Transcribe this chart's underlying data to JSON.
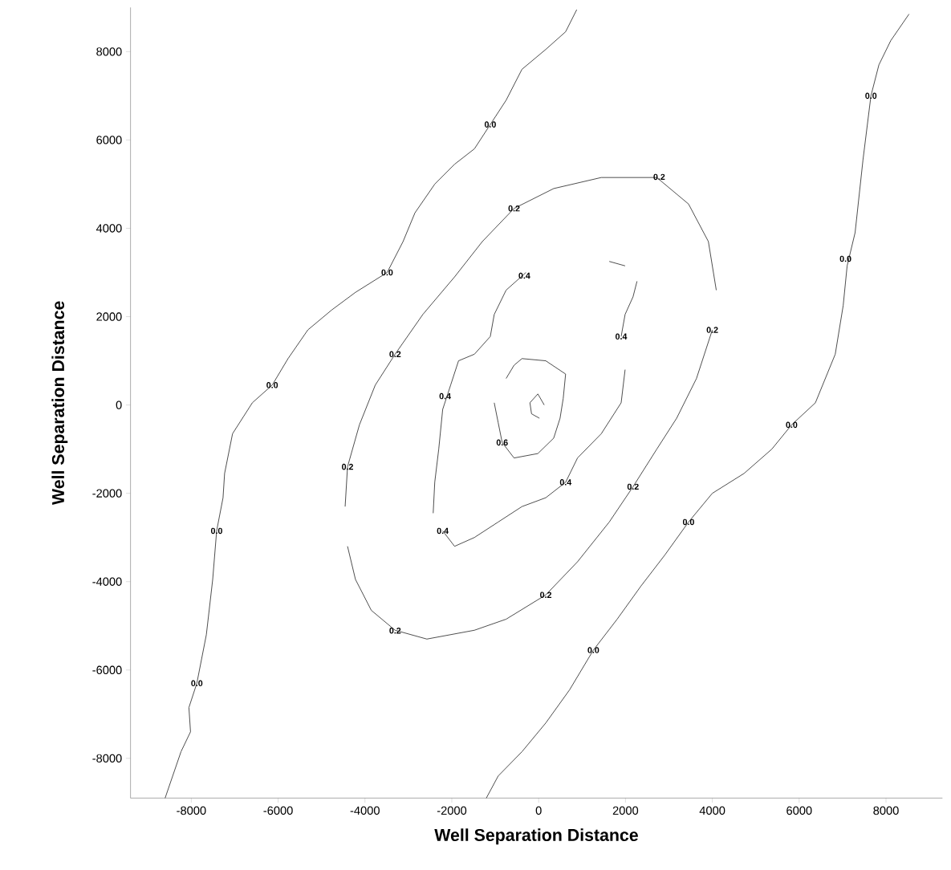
{
  "chart_data": {
    "type": "line",
    "xlabel": "Well Separation Distance",
    "ylabel": "Well Separation Distance",
    "xlim": [
      -9400,
      9300
    ],
    "ylim": [
      -8900,
      9000
    ],
    "xticks": [
      -8000,
      -6000,
      -4000,
      -2000,
      0,
      2000,
      4000,
      6000,
      8000
    ],
    "yticks": [
      -8000,
      -6000,
      -4000,
      -2000,
      0,
      2000,
      4000,
      6000,
      8000
    ],
    "marker": "none",
    "line_style": "solid",
    "series": [
      {
        "color": "#222222",
        "x": [
          877,
          621,
          164,
          -384,
          -749,
          -1114,
          -1479,
          -1936,
          -2393,
          -2849,
          -3123,
          -3489,
          -4219,
          -4767,
          -5315,
          -5772,
          -6137,
          -6594,
          -7050,
          -7233,
          -7269,
          -7416,
          -7507,
          -7653,
          -7872,
          -8055,
          -8018,
          -8237,
          -8603
        ],
        "values": [
          8950,
          8450,
          8050,
          7600,
          6900,
          6350,
          5800,
          5450,
          5000,
          4350,
          3700,
          3000,
          2550,
          2150,
          1700,
          1050,
          450,
          50,
          -650,
          -1550,
          -2100,
          -2850,
          -3950,
          -5200,
          -6300,
          -6850,
          -7400,
          -7850,
          -8900
        ]
      },
      {
        "color": "#222222",
        "x": [
          -1205,
          -932,
          -384,
          164,
          712,
          1260,
          1808,
          2356,
          2904,
          3452,
          4000,
          4731,
          5370,
          5826,
          6374,
          6831,
          7014,
          7105,
          7288,
          7470,
          7653,
          7836,
          8110,
          8530
        ],
        "values": [
          -8900,
          -8400,
          -7850,
          -7200,
          -6450,
          -5550,
          -4850,
          -4100,
          -3400,
          -2650,
          -2000,
          -1550,
          -1000,
          -450,
          50,
          1150,
          2250,
          3150,
          3900,
          5550,
          7000,
          7700,
          8250,
          8850
        ]
      },
      {
        "color": "#222222",
        "x": [
          -4457,
          -4402,
          -4128,
          -3763,
          -3306,
          -2667,
          -1936,
          -1297,
          -566,
          347,
          1443,
          2721,
          3452,
          3909,
          4091
        ],
        "values": [
          -2300,
          -1400,
          -450,
          450,
          1150,
          2050,
          2900,
          3700,
          4450,
          4900,
          5150,
          5150,
          4550,
          3700,
          2600
        ]
      },
      {
        "color": "#222222",
        "x": [
          4000,
          3635,
          3178,
          2721,
          2174,
          1626,
          895,
          164,
          -749,
          -1479,
          -2575,
          -3306,
          -3854,
          -4219,
          -4402
        ],
        "values": [
          1700,
          600,
          -300,
          -1000,
          -1850,
          -2650,
          -3550,
          -4300,
          -4850,
          -5100,
          -5300,
          -5100,
          -4650,
          -3950,
          -3200
        ]
      },
      {
        "color": "#222222",
        "x": [
          -2429,
          -2393,
          -2301,
          -2210,
          -2027,
          -1845,
          -1479,
          -1114,
          -1023,
          -749,
          -292
        ],
        "values": [
          -2450,
          -1750,
          -1000,
          -100,
          450,
          1000,
          1150,
          1550,
          2050,
          2600,
          3000
        ]
      },
      {
        "color": "#222222",
        "x": [
          -2210,
          -1936,
          -1479,
          -932,
          -384,
          164,
          621,
          895,
          1443,
          1900,
          1991
        ],
        "values": [
          -2850,
          -3200,
          -3000,
          -2650,
          -2300,
          -2100,
          -1750,
          -1200,
          -650,
          50,
          800
        ]
      },
      {
        "color": "#222222",
        "x": [
          1900,
          1991,
          2174,
          2265
        ],
        "values": [
          1550,
          2050,
          2450,
          2800
        ]
      },
      {
        "color": "#222222",
        "x": [
          1626,
          1991
        ],
        "values": [
          3250,
          3150
        ]
      },
      {
        "color": "#222222",
        "x": [
          -749,
          -566,
          -384,
          164,
          621
        ],
        "values": [
          600,
          900,
          1050,
          1000,
          700
        ]
      },
      {
        "color": "#222222",
        "x": [
          621,
          566,
          493,
          347,
          -18,
          -566,
          -840,
          -932,
          -1023
        ],
        "values": [
          700,
          150,
          -300,
          -750,
          -1100,
          -1200,
          -850,
          -400,
          50
        ]
      },
      {
        "color": "#222222",
        "x": [
          -201,
          -18,
          128
        ],
        "values": [
          50,
          250,
          0
        ]
      },
      {
        "color": "#222222",
        "x": [
          18,
          -164,
          -201
        ],
        "values": [
          -300,
          -200,
          50
        ]
      }
    ],
    "annotations": [
      {
        "text": "0.0",
        "x": -1114,
        "y": 6350
      },
      {
        "text": "0.0",
        "x": -3489,
        "y": 3000
      },
      {
        "text": "0.0",
        "x": -6137,
        "y": 450
      },
      {
        "text": "0.0",
        "x": -7416,
        "y": -2850
      },
      {
        "text": "0.0",
        "x": -7872,
        "y": -6300
      },
      {
        "text": "0.0",
        "x": 7653,
        "y": 7000
      },
      {
        "text": "0.0",
        "x": 7068,
        "y": 3309
      },
      {
        "text": "0.0",
        "x": 5826,
        "y": -450
      },
      {
        "text": "0.0",
        "x": 3452,
        "y": -2650
      },
      {
        "text": "0.0",
        "x": 1260,
        "y": -5550
      },
      {
        "text": "0.2",
        "x": 2776,
        "y": 5164
      },
      {
        "text": "0.2",
        "x": -566,
        "y": 4450
      },
      {
        "text": "0.2",
        "x": -3306,
        "y": 1150
      },
      {
        "text": "0.2",
        "x": -4402,
        "y": -1400
      },
      {
        "text": "0.2",
        "x": -3306,
        "y": -5109
      },
      {
        "text": "0.2",
        "x": 164,
        "y": -4300
      },
      {
        "text": "0.2",
        "x": 2174,
        "y": -1850
      },
      {
        "text": "0.2",
        "x": 4000,
        "y": 1700
      },
      {
        "text": "0.4",
        "x": -329,
        "y": 2927
      },
      {
        "text": "0.4",
        "x": -2155,
        "y": 200
      },
      {
        "text": "0.4",
        "x": -2210,
        "y": -2850
      },
      {
        "text": "0.4",
        "x": 621,
        "y": -1750
      },
      {
        "text": "0.4",
        "x": 1900,
        "y": 1550
      },
      {
        "text": "0.6",
        "x": -840,
        "y": -850
      }
    ]
  }
}
